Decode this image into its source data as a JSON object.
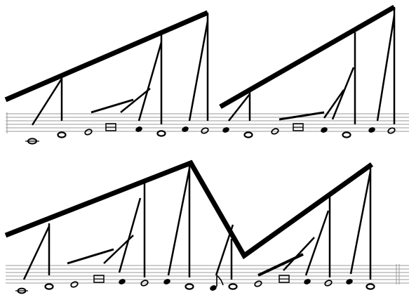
{
  "score": {
    "description_labels": [],
    "systems": [
      {
        "id": "system-1"
      },
      {
        "id": "system-2"
      }
    ]
  },
  "colors": {
    "ink": "#000000",
    "staff_line": "#9a9a9a",
    "background": "#ffffff"
  },
  "glyphs": {
    "whole_note": "whole-note",
    "half_note": "half-note",
    "quarter_note": "quarter-note",
    "breve": "breve-note",
    "ledger_note": "ledger-whole-note"
  }
}
